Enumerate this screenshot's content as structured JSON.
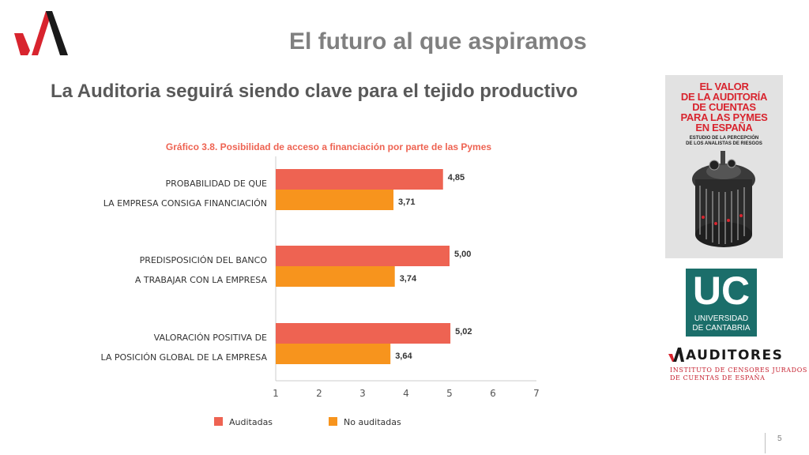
{
  "slide": {
    "title": "El futuro al que aspiramos",
    "subtitle": "La Auditoria seguirá siendo clave para el tejido productivo",
    "page_number": "5"
  },
  "colors": {
    "auditadas": "#ee6352",
    "no_auditadas": "#f7941d",
    "axis": "#cccccc",
    "brand_red": "#d8242e",
    "uc_teal": "#1b6e6a"
  },
  "chart_data": {
    "type": "bar",
    "orientation": "horizontal",
    "title": "Gráfico 3.8. Posibilidad de acceso a financiación por parte de las Pymes",
    "categories": [
      [
        "PROBABILIDAD DE QUE",
        "LA EMPRESA CONSIGA FINANCIACIÓN"
      ],
      [
        "PREDISPOSICIÓN DEL BANCO",
        "A TRABAJAR CON LA EMPRESA"
      ],
      [
        "VALORACIÓN POSITIVA DE",
        "LA POSICIÓN GLOBAL DE LA EMPRESA"
      ]
    ],
    "series": [
      {
        "name": "Auditadas",
        "values": [
          4.85,
          5.0,
          5.02
        ],
        "labels": [
          "4,85",
          "5,00",
          "5,02"
        ]
      },
      {
        "name": "No auditadas",
        "values": [
          3.71,
          3.74,
          3.64
        ],
        "labels": [
          "3,71",
          "3,74",
          "3,64"
        ]
      }
    ],
    "xlim": [
      1,
      7
    ],
    "xticks": [
      1,
      2,
      3,
      4,
      5,
      6,
      7
    ],
    "legend_position": "bottom",
    "grid": false
  },
  "book": {
    "title_lines": [
      "EL VALOR",
      "DE LA AUDITORÍA",
      "DE CUENTAS",
      "PARA LAS PYMES",
      "EN ESPAÑA"
    ],
    "subtitle_lines": [
      "ESTUDIO DE LA PERCEPCIÓN",
      "DE LOS ANALISTAS DE RIESGOS"
    ]
  },
  "uc": {
    "letters": "UC",
    "line1": "UNIVERSIDAD",
    "line2": "DE CANTABRIA"
  },
  "auditores": {
    "name": "AUDITORES",
    "line1": "INSTITUTO DE CENSORES JURADOS",
    "line2": "DE CUENTAS DE ESPAÑA"
  }
}
